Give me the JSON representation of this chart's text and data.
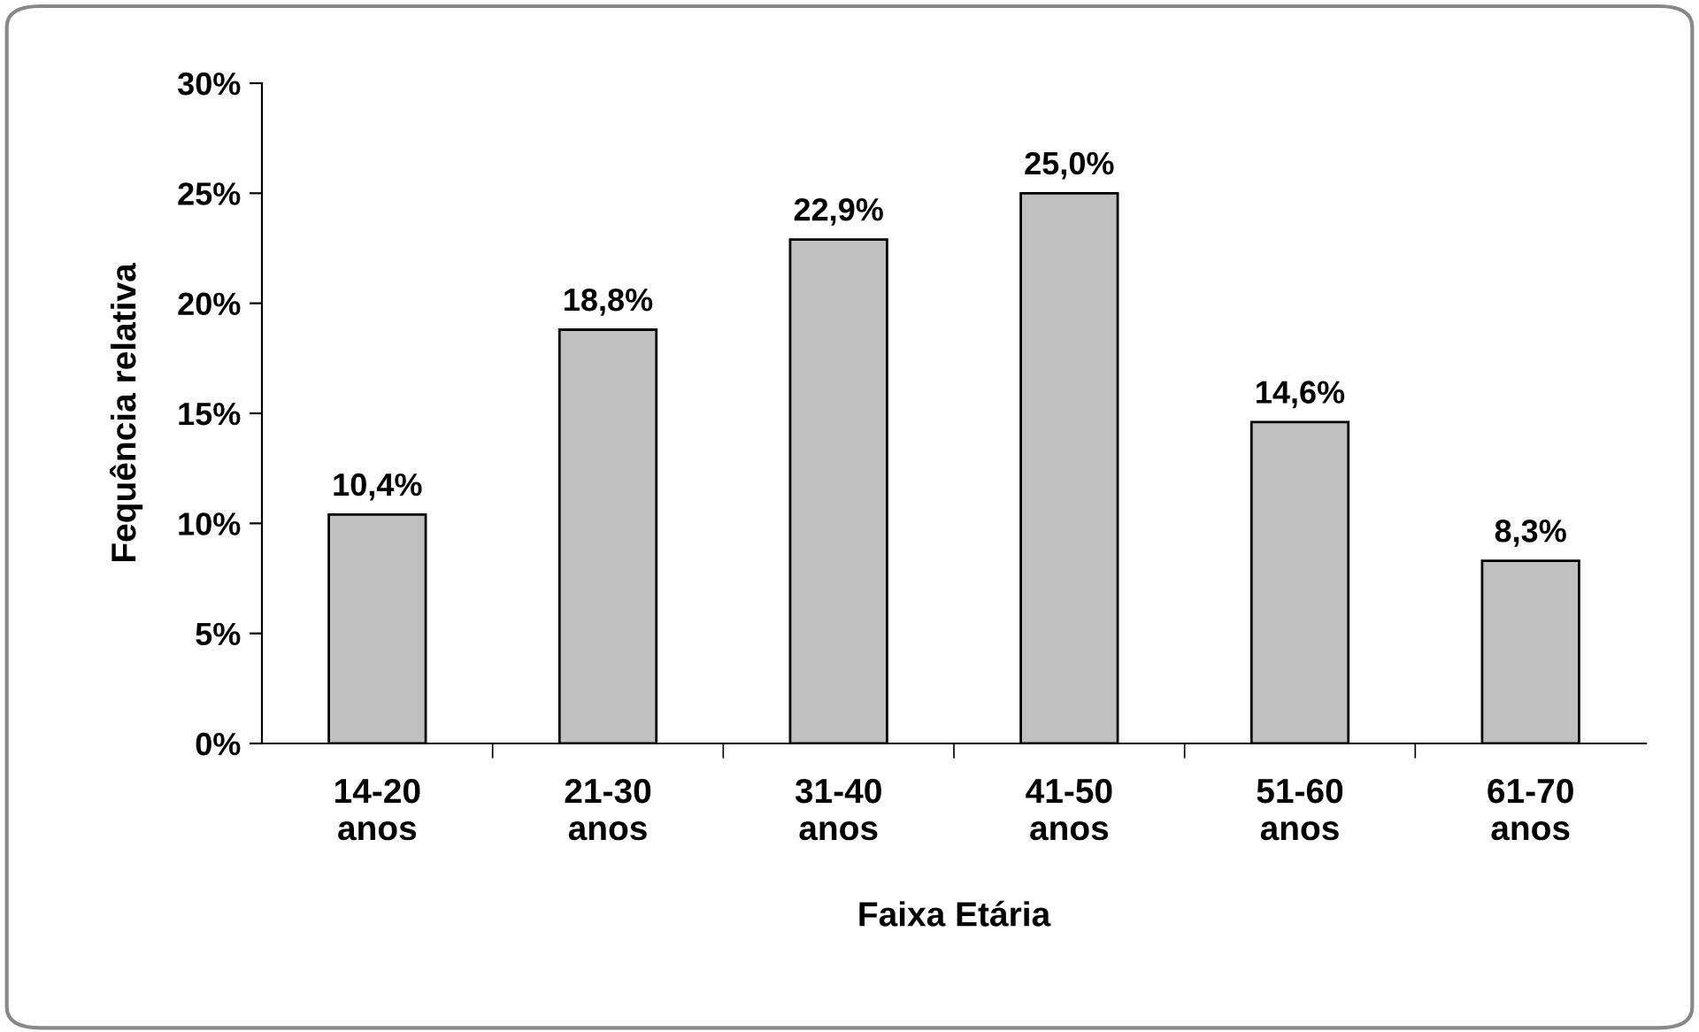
{
  "chart_data": {
    "type": "bar",
    "xlabel": "Faixa Etária",
    "ylabel": "Fequência relativa",
    "categories": [
      "14-20\nanos",
      "21-30\nanos",
      "31-40\nanos",
      "41-50\nanos",
      "51-60\nanos",
      "61-70\nanos"
    ],
    "values": [
      10.4,
      18.8,
      22.9,
      25.0,
      14.6,
      8.3
    ],
    "value_labels": [
      "10,4%",
      "18,8%",
      "22,9%",
      "25,0%",
      "14,6%",
      "8,3%"
    ],
    "color": "#c0c0c0",
    "ylim": [
      0,
      30
    ],
    "yticks": [
      {
        "value": 0,
        "label": "0%"
      },
      {
        "value": 5,
        "label": "5%"
      },
      {
        "value": 10,
        "label": "10%"
      },
      {
        "value": 15,
        "label": "15%"
      },
      {
        "value": 20,
        "label": "20%"
      },
      {
        "value": 25,
        "label": "25%"
      },
      {
        "value": 30,
        "label": "30%"
      }
    ],
    "grid": false,
    "legend": false
  }
}
